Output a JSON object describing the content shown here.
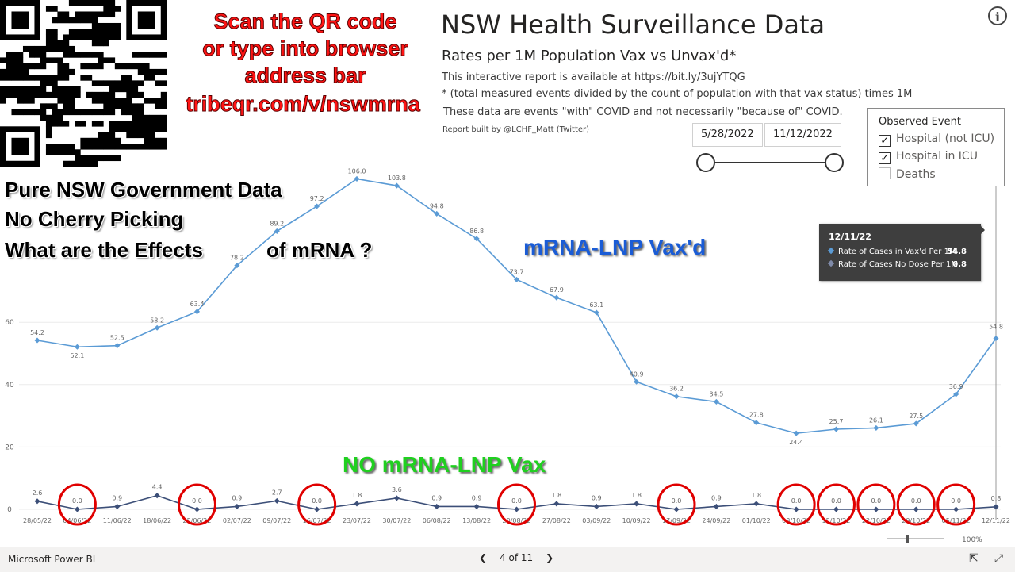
{
  "promo": {
    "lines": [
      "Scan the QR code",
      "or type into browser",
      "address bar",
      "tribeqr.com/v/nswmrna"
    ]
  },
  "claims": [
    "Pure NSW Government Data",
    "No Cherry Picking",
    "What are the Effects",
    "of mRNA ?"
  ],
  "report": {
    "title": "NSW Health Surveillance Data",
    "subtitle": "Rates per 1M Population Vax vs Unvax'd*",
    "note1": "This interactive report is available at https://bit.ly/3ujYTQG",
    "note2": "* (total measured events divided by the count of population with that vax status) times 1M",
    "note3": "These data are events \"with\" COVID and not necessarily \"because of\" COVID.",
    "credit": "Report built by @LCHF_Matt (Twitter)"
  },
  "date_filter": {
    "start": "5/28/2022",
    "end": "11/12/2022"
  },
  "legend": {
    "title": "Observed Event",
    "items": [
      {
        "label": "Hospital (not ICU)",
        "checked": true
      },
      {
        "label": "Hospital in ICU",
        "checked": true
      },
      {
        "label": "Deaths",
        "checked": false
      }
    ]
  },
  "tooltip": {
    "date": "12/11/22",
    "rows": [
      {
        "label": "Rate of Cases in Vax'd Per 1M",
        "value": "54.8",
        "color": "#5b9bd5"
      },
      {
        "label": "Rate of Cases No Dose Per 1M",
        "value": "0.8",
        "color": "#3c4f78"
      }
    ]
  },
  "annotations": {
    "vaxd": "mRNA-LNP Vax'd",
    "no_vax": "NO mRNA-LNP Vax"
  },
  "footer": {
    "app_name": "Microsoft Power BI",
    "page": "4 of 11",
    "zoom": "100%"
  },
  "colors": {
    "vaxd": "#5b9bd5",
    "novax": "#3c4f78",
    "circle": "#e00000",
    "annot_blue": "#1a5cd6",
    "annot_green": "#1fd01f"
  },
  "chart_data": {
    "type": "line",
    "categories": [
      "28/05/22",
      "04/06/22",
      "11/06/22",
      "18/06/22",
      "25/06/22",
      "02/07/22",
      "09/07/22",
      "16/07/22",
      "23/07/22",
      "30/07/22",
      "06/08/22",
      "13/08/22",
      "20/08/22",
      "27/08/22",
      "03/09/22",
      "10/09/22",
      "17/09/22",
      "24/09/22",
      "01/10/22",
      "08/10/22",
      "15/10/22",
      "22/10/22",
      "29/10/22",
      "05/11/22",
      "12/11/22"
    ],
    "series": [
      {
        "name": "Rate of Cases in Vax'd Per 1M",
        "values": [
          54.2,
          52.1,
          52.5,
          58.2,
          63.4,
          78.2,
          89.2,
          97.2,
          106.0,
          103.8,
          94.8,
          86.8,
          73.7,
          67.9,
          63.1,
          40.9,
          36.2,
          34.5,
          27.8,
          24.4,
          25.7,
          26.1,
          27.5,
          36.9,
          54.8
        ]
      },
      {
        "name": "Rate of Cases No Dose Per 1M",
        "values": [
          2.6,
          0.0,
          0.9,
          4.4,
          0.0,
          0.9,
          2.7,
          0.0,
          1.8,
          3.6,
          0.9,
          0.9,
          0.0,
          1.8,
          0.9,
          1.8,
          0.0,
          0.9,
          1.8,
          0.0,
          0.0,
          0.0,
          0.0,
          0.0,
          0.8
        ]
      }
    ],
    "yticks": [
      0,
      20,
      40,
      60
    ],
    "circled_indices": [
      1,
      4,
      7,
      12,
      16,
      19,
      20,
      21,
      22,
      23
    ],
    "grid": true
  }
}
